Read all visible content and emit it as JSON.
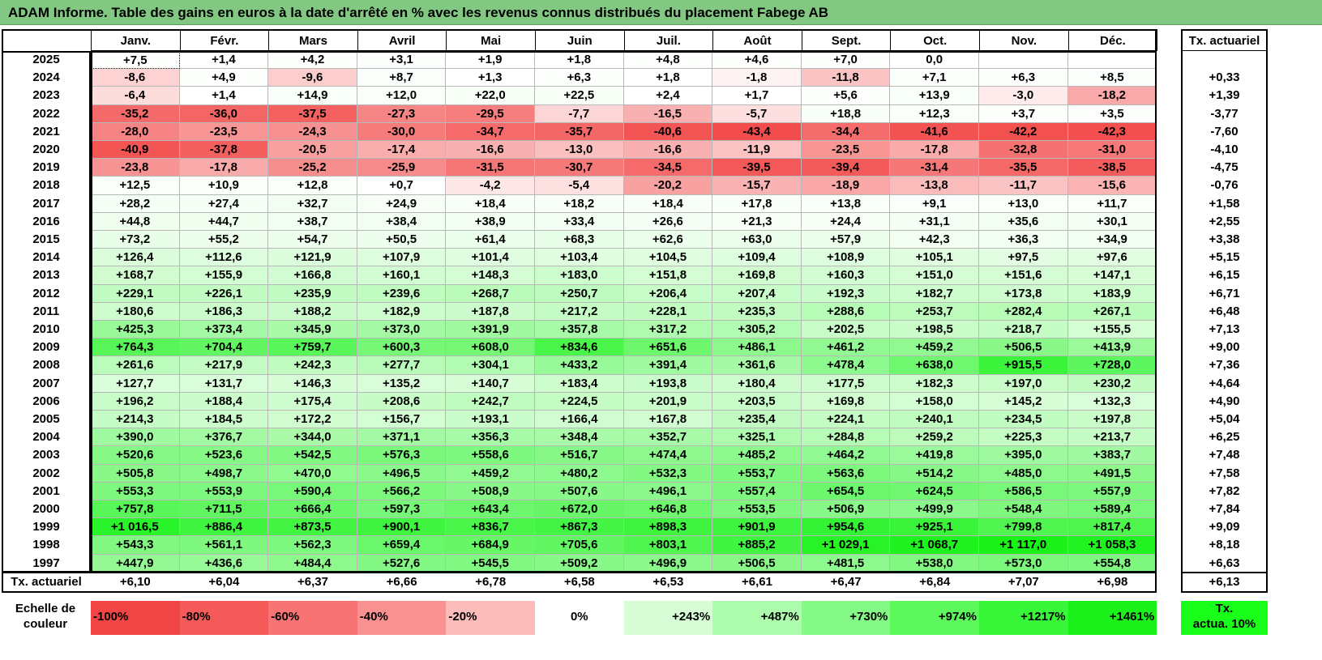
{
  "title": "ADAM Informe. Table des gains en euros à la date d'arrêté en % avec les revenus connus distribués du placement Fabege AB",
  "months": [
    "Janv.",
    "Févr.",
    "Mars",
    "Avril",
    "Mai",
    "Juin",
    "Juil.",
    "Août",
    "Sept.",
    "Oct.",
    "Nov.",
    "Déc."
  ],
  "tx_header": "Tx. actuariel",
  "rows": [
    {
      "year": "2025",
      "values": [
        "+7,5",
        "+1,4",
        "+4,2",
        "+3,1",
        "+1,9",
        "+1,8",
        "+4,8",
        "+4,6",
        "+7,0",
        "0,0",
        "",
        ""
      ],
      "tx": ""
    },
    {
      "year": "2024",
      "values": [
        "-8,6",
        "+4,9",
        "-9,6",
        "+8,7",
        "+1,3",
        "+6,3",
        "+1,8",
        "-1,8",
        "-11,8",
        "+7,1",
        "+6,3",
        "+8,5"
      ],
      "tx": "+0,33"
    },
    {
      "year": "2023",
      "values": [
        "-6,4",
        "+1,4",
        "+14,9",
        "+12,0",
        "+22,0",
        "+22,5",
        "+2,4",
        "+1,7",
        "+5,6",
        "+13,9",
        "-3,0",
        "-18,2"
      ],
      "tx": "+1,39"
    },
    {
      "year": "2022",
      "values": [
        "-35,2",
        "-36,0",
        "-37,5",
        "-27,3",
        "-29,5",
        "-7,7",
        "-16,5",
        "-5,7",
        "+18,8",
        "+12,3",
        "+3,7",
        "+3,5"
      ],
      "tx": "-3,77"
    },
    {
      "year": "2021",
      "values": [
        "-28,0",
        "-23,5",
        "-24,3",
        "-30,0",
        "-34,7",
        "-35,7",
        "-40,6",
        "-43,4",
        "-34,4",
        "-41,6",
        "-42,2",
        "-42,3"
      ],
      "tx": "-7,60"
    },
    {
      "year": "2020",
      "values": [
        "-40,9",
        "-37,8",
        "-20,5",
        "-17,4",
        "-16,6",
        "-13,0",
        "-16,6",
        "-11,9",
        "-23,5",
        "-17,8",
        "-32,8",
        "-31,0"
      ],
      "tx": "-4,10"
    },
    {
      "year": "2019",
      "values": [
        "-23,8",
        "-17,8",
        "-25,2",
        "-25,9",
        "-31,5",
        "-30,7",
        "-34,5",
        "-39,5",
        "-39,4",
        "-31,4",
        "-35,5",
        "-38,5"
      ],
      "tx": "-4,75"
    },
    {
      "year": "2018",
      "values": [
        "+12,5",
        "+10,9",
        "+12,8",
        "+0,7",
        "-4,2",
        "-5,4",
        "-20,2",
        "-15,7",
        "-18,9",
        "-13,8",
        "-11,7",
        "-15,6"
      ],
      "tx": "-0,76"
    },
    {
      "year": "2017",
      "values": [
        "+28,2",
        "+27,4",
        "+32,7",
        "+24,9",
        "+18,4",
        "+18,2",
        "+18,4",
        "+17,8",
        "+13,8",
        "+9,1",
        "+13,0",
        "+11,7"
      ],
      "tx": "+1,58"
    },
    {
      "year": "2016",
      "values": [
        "+44,8",
        "+44,7",
        "+38,7",
        "+38,4",
        "+38,9",
        "+33,4",
        "+26,6",
        "+21,3",
        "+24,4",
        "+31,1",
        "+35,6",
        "+30,1"
      ],
      "tx": "+2,55"
    },
    {
      "year": "2015",
      "values": [
        "+73,2",
        "+55,2",
        "+54,7",
        "+50,5",
        "+61,4",
        "+68,3",
        "+62,6",
        "+63,0",
        "+57,9",
        "+42,3",
        "+36,3",
        "+34,9"
      ],
      "tx": "+3,38"
    },
    {
      "year": "2014",
      "values": [
        "+126,4",
        "+112,6",
        "+121,9",
        "+107,9",
        "+101,4",
        "+103,4",
        "+104,5",
        "+109,4",
        "+108,9",
        "+105,1",
        "+97,5",
        "+97,6"
      ],
      "tx": "+5,15"
    },
    {
      "year": "2013",
      "values": [
        "+168,7",
        "+155,9",
        "+166,8",
        "+160,1",
        "+148,3",
        "+183,0",
        "+151,8",
        "+169,8",
        "+160,3",
        "+151,0",
        "+151,6",
        "+147,1"
      ],
      "tx": "+6,15"
    },
    {
      "year": "2012",
      "values": [
        "+229,1",
        "+226,1",
        "+235,9",
        "+239,6",
        "+268,7",
        "+250,7",
        "+206,4",
        "+207,4",
        "+192,3",
        "+182,7",
        "+173,8",
        "+183,9"
      ],
      "tx": "+6,71"
    },
    {
      "year": "2011",
      "values": [
        "+180,6",
        "+186,3",
        "+188,2",
        "+182,9",
        "+187,8",
        "+217,2",
        "+228,1",
        "+235,3",
        "+288,6",
        "+253,7",
        "+282,4",
        "+267,1"
      ],
      "tx": "+6,48"
    },
    {
      "year": "2010",
      "values": [
        "+425,3",
        "+373,4",
        "+345,9",
        "+373,0",
        "+391,9",
        "+357,8",
        "+317,2",
        "+305,2",
        "+202,5",
        "+198,5",
        "+218,7",
        "+155,5"
      ],
      "tx": "+7,13"
    },
    {
      "year": "2009",
      "values": [
        "+764,3",
        "+704,4",
        "+759,7",
        "+600,3",
        "+608,0",
        "+834,6",
        "+651,6",
        "+486,1",
        "+461,2",
        "+459,2",
        "+506,5",
        "+413,9"
      ],
      "tx": "+9,00"
    },
    {
      "year": "2008",
      "values": [
        "+261,6",
        "+217,9",
        "+242,3",
        "+277,7",
        "+304,1",
        "+433,2",
        "+391,4",
        "+361,6",
        "+478,4",
        "+638,0",
        "+915,5",
        "+728,0"
      ],
      "tx": "+7,36"
    },
    {
      "year": "2007",
      "values": [
        "+127,7",
        "+131,7",
        "+146,3",
        "+135,2",
        "+140,7",
        "+183,4",
        "+193,8",
        "+180,4",
        "+177,5",
        "+182,3",
        "+197,0",
        "+230,2"
      ],
      "tx": "+4,64"
    },
    {
      "year": "2006",
      "values": [
        "+196,2",
        "+188,4",
        "+175,4",
        "+208,6",
        "+242,7",
        "+224,5",
        "+201,9",
        "+203,5",
        "+169,8",
        "+158,0",
        "+145,2",
        "+132,3"
      ],
      "tx": "+4,90"
    },
    {
      "year": "2005",
      "values": [
        "+214,3",
        "+184,5",
        "+172,2",
        "+156,7",
        "+193,1",
        "+166,4",
        "+167,8",
        "+235,4",
        "+224,1",
        "+240,1",
        "+234,5",
        "+197,8"
      ],
      "tx": "+5,04"
    },
    {
      "year": "2004",
      "values": [
        "+390,0",
        "+376,7",
        "+344,0",
        "+371,1",
        "+356,3",
        "+348,4",
        "+352,7",
        "+325,1",
        "+284,8",
        "+259,2",
        "+225,3",
        "+213,7"
      ],
      "tx": "+6,25"
    },
    {
      "year": "2003",
      "values": [
        "+520,6",
        "+523,6",
        "+542,5",
        "+576,3",
        "+558,6",
        "+516,7",
        "+474,4",
        "+485,2",
        "+464,2",
        "+419,8",
        "+395,0",
        "+383,7"
      ],
      "tx": "+7,48"
    },
    {
      "year": "2002",
      "values": [
        "+505,8",
        "+498,7",
        "+470,0",
        "+496,5",
        "+459,2",
        "+480,2",
        "+532,3",
        "+553,7",
        "+563,6",
        "+514,2",
        "+485,0",
        "+491,5"
      ],
      "tx": "+7,58"
    },
    {
      "year": "2001",
      "values": [
        "+553,3",
        "+553,9",
        "+590,4",
        "+566,2",
        "+508,9",
        "+507,6",
        "+496,1",
        "+557,4",
        "+654,5",
        "+624,5",
        "+586,5",
        "+557,9"
      ],
      "tx": "+7,82"
    },
    {
      "year": "2000",
      "values": [
        "+757,8",
        "+711,5",
        "+666,4",
        "+597,3",
        "+643,4",
        "+672,0",
        "+646,8",
        "+553,5",
        "+506,9",
        "+499,9",
        "+548,4",
        "+589,4"
      ],
      "tx": "+7,84"
    },
    {
      "year": "1999",
      "values": [
        "+1 016,5",
        "+886,4",
        "+873,5",
        "+900,1",
        "+836,7",
        "+867,3",
        "+898,3",
        "+901,9",
        "+954,6",
        "+925,1",
        "+799,8",
        "+817,4"
      ],
      "tx": "+9,09"
    },
    {
      "year": "1998",
      "values": [
        "+543,3",
        "+561,1",
        "+562,3",
        "+659,4",
        "+684,9",
        "+705,6",
        "+803,1",
        "+885,2",
        "+1 029,1",
        "+1 068,7",
        "+1 117,0",
        "+1 058,3"
      ],
      "tx": "+8,18"
    },
    {
      "year": "1997",
      "values": [
        "+447,9",
        "+436,6",
        "+484,4",
        "+527,6",
        "+545,5",
        "+509,2",
        "+496,9",
        "+506,5",
        "+481,5",
        "+538,0",
        "+573,0",
        "+554,8"
      ],
      "tx": "+6,63"
    }
  ],
  "footer": {
    "label": "Tx. actuariel",
    "values": [
      "+6,10",
      "+6,04",
      "+6,37",
      "+6,66",
      "+6,78",
      "+6,58",
      "+6,53",
      "+6,61",
      "+6,47",
      "+6,84",
      "+7,07",
      "+6,98"
    ],
    "tx": "+6,13"
  },
  "legend": {
    "label_line1": "Echelle de",
    "label_line2": "couleur",
    "cells": [
      {
        "text": "-100%",
        "color": "#f24646",
        "align": "left"
      },
      {
        "text": "-80%",
        "color": "#f55a5a",
        "align": "left"
      },
      {
        "text": "-60%",
        "color": "#f87373",
        "align": "left"
      },
      {
        "text": "-40%",
        "color": "#fa9191",
        "align": "left"
      },
      {
        "text": "-20%",
        "color": "#fcbcbc",
        "align": "left"
      },
      {
        "text": "0%",
        "color": "#ffffff",
        "align": "center"
      },
      {
        "text": "+243%",
        "color": "#d6fdd6",
        "align": "right"
      },
      {
        "text": "+487%",
        "color": "#adfbad",
        "align": "right"
      },
      {
        "text": "+730%",
        "color": "#85f985",
        "align": "right"
      },
      {
        "text": "+974%",
        "color": "#5cf85c",
        "align": "right"
      },
      {
        "text": "+1217%",
        "color": "#38f638",
        "align": "right"
      },
      {
        "text": "+1461%",
        "color": "#1af21a",
        "align": "right"
      }
    ],
    "tx_line1": "Tx.",
    "tx_line2": "actua. 10%"
  }
}
